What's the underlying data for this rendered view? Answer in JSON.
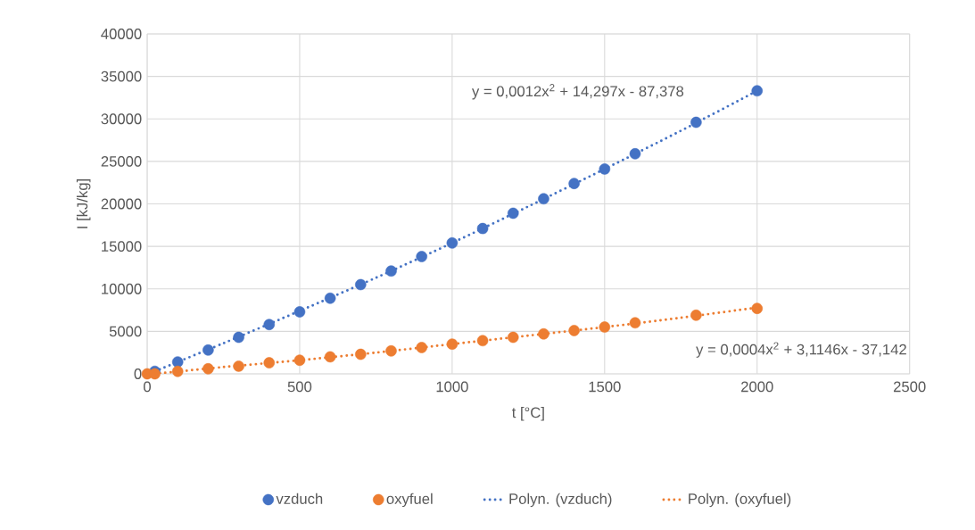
{
  "chart_data": {
    "type": "scatter",
    "xlabel": "t [°C]",
    "ylabel": "I [kJ/kg]",
    "xlim": [
      0,
      2500
    ],
    "xticks": [
      0,
      500,
      1000,
      1500,
      2000,
      2500
    ],
    "ylim": [
      0,
      40000
    ],
    "yticks": [
      0,
      5000,
      10000,
      15000,
      20000,
      25000,
      30000,
      35000,
      40000
    ],
    "grid": true,
    "legend": "bottom",
    "marker": "circle",
    "series": [
      {
        "name": "vzduch",
        "color": "#4472c4",
        "x": [
          25,
          100,
          200,
          300,
          400,
          500,
          600,
          700,
          800,
          900,
          1000,
          1100,
          1200,
          1300,
          1400,
          1500,
          1600,
          1800,
          2000
        ],
        "values": [
          300,
          1400,
          2800,
          4300,
          5800,
          7300,
          8900,
          10500,
          12100,
          13800,
          15400,
          17100,
          18900,
          20600,
          22400,
          24100,
          25900,
          29600,
          33300
        ]
      },
      {
        "name": "oxyfuel",
        "color": "#ed7d31",
        "x": [
          0,
          25,
          100,
          200,
          300,
          400,
          500,
          600,
          700,
          800,
          900,
          1000,
          1100,
          1200,
          1300,
          1400,
          1500,
          1600,
          1800,
          2000
        ],
        "values": [
          0,
          0,
          300,
          600,
          900,
          1300,
          1600,
          2000,
          2300,
          2700,
          3100,
          3500,
          3900,
          4300,
          4700,
          5100,
          5500,
          6000,
          6900,
          7700
        ]
      },
      {
        "name": "Polyn. (vzduch)",
        "color": "#4472c4",
        "type": "line",
        "marker": "none",
        "line_style": "dotted",
        "x": [
          25,
          250,
          500,
          750,
          1000,
          1250,
          1500,
          1750,
          2000
        ],
        "values": [
          300,
          3600,
          7400,
          11300,
          15400,
          19700,
          24100,
          28600,
          33300
        ]
      },
      {
        "name": "Polyn. (oxyfuel)",
        "color": "#ed7d31",
        "type": "line",
        "marker": "none",
        "line_style": "dotted",
        "x": [
          25,
          250,
          500,
          750,
          1000,
          1250,
          1500,
          1750,
          2000
        ],
        "values": [
          0,
          800,
          1600,
          2500,
          3500,
          4500,
          5500,
          6600,
          7800
        ]
      }
    ],
    "annotations": [
      "y = 0,0012x$^{2}$ + 14,297x - 87,378",
      "y = 0,0004x$^{2}$ + 3,1146x - 37,142"
    ]
  }
}
